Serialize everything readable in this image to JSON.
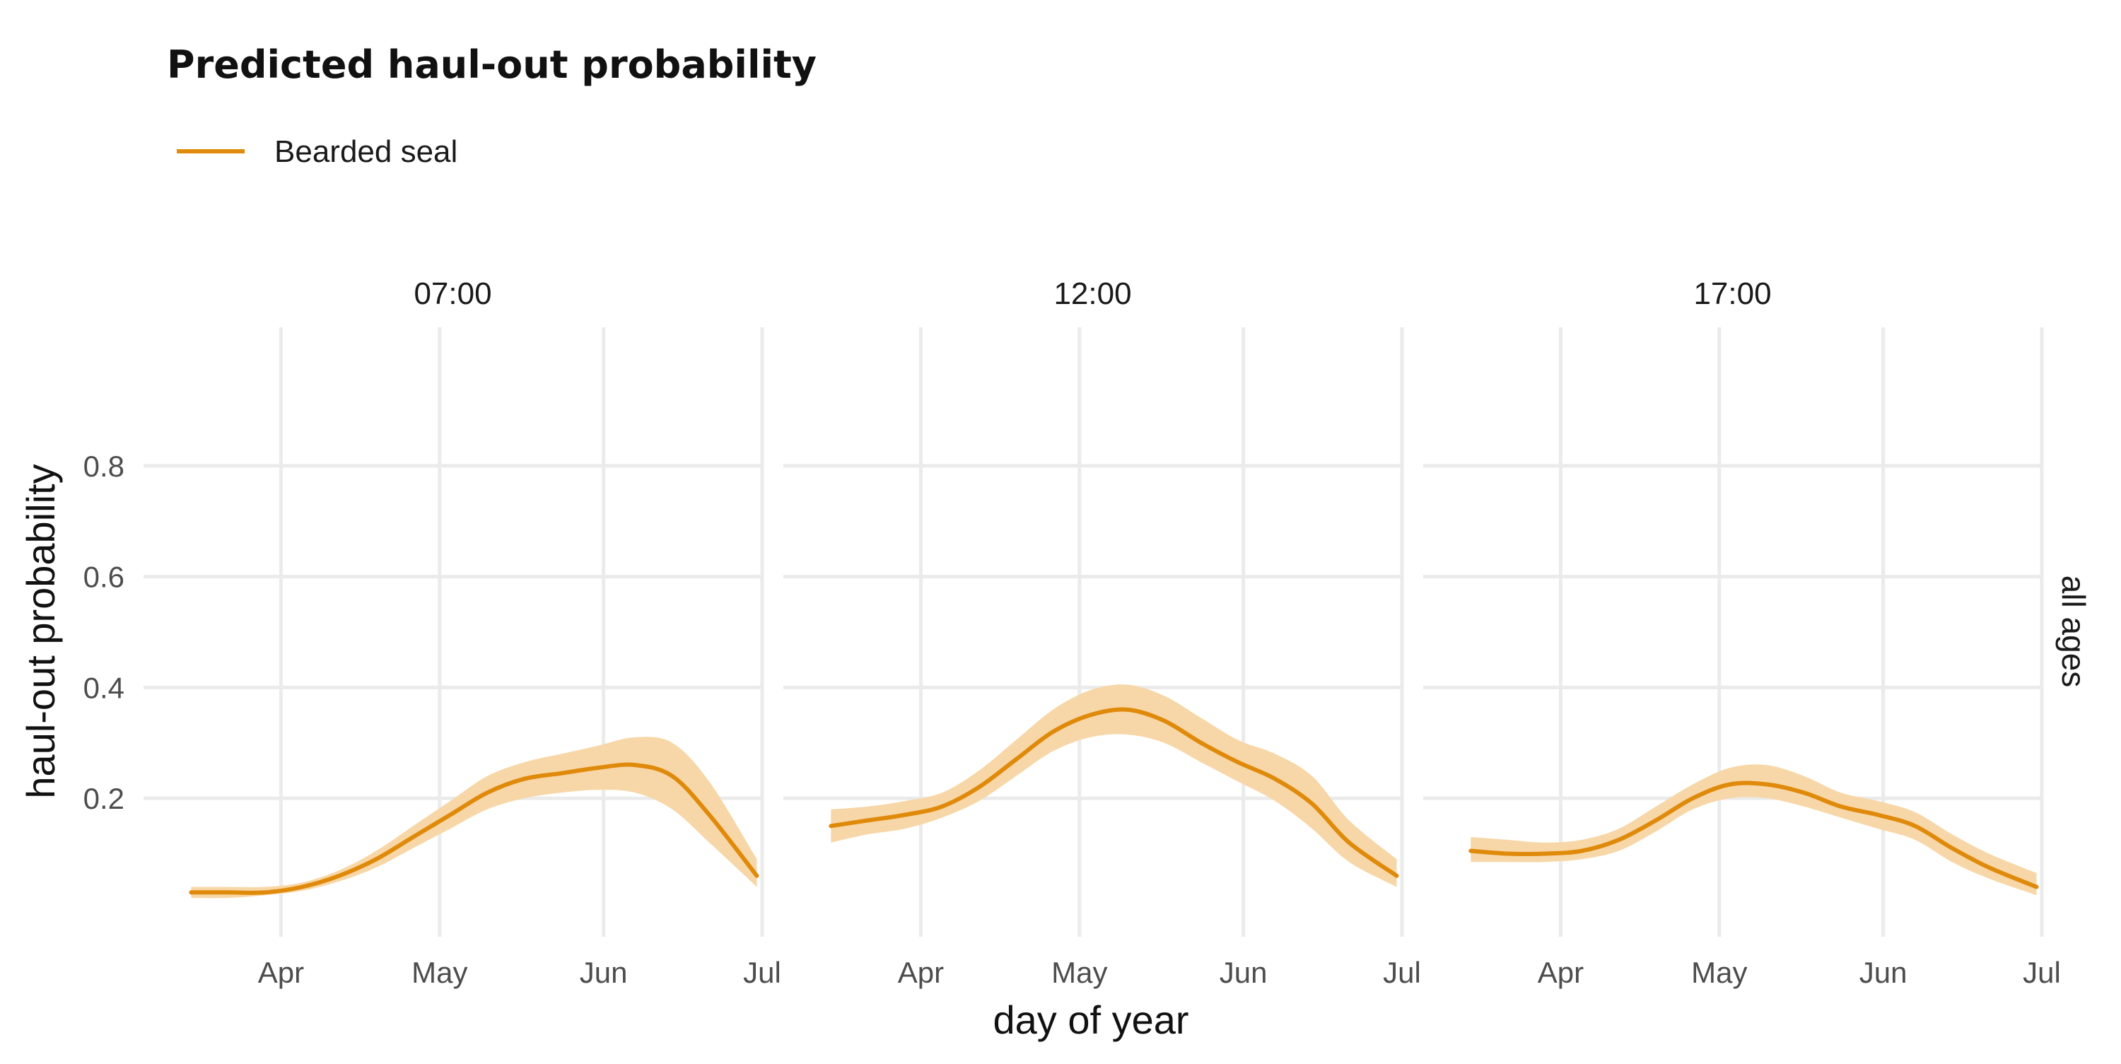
{
  "chart_data": {
    "type": "line",
    "title": "Predicted haul-out probability",
    "xlabel": "day of year",
    "ylabel": "haul-out probability",
    "row_facet_label": "all ages",
    "ylim": [
      -0.05,
      1.05
    ],
    "y_ticks": [
      0.2,
      0.4,
      0.6,
      0.8
    ],
    "y_tick_labels": [
      "0.2",
      "0.4",
      "0.6",
      "0.8"
    ],
    "xlim": [
      "2000-03-06",
      "2000-07-01"
    ],
    "x_ticks": [
      "2000-04-01",
      "2000-05-01",
      "2000-06-01",
      "2000-07-01"
    ],
    "x_tick_labels": [
      "Apr",
      "May",
      "Jun",
      "Jul"
    ],
    "grid": true,
    "legend": {
      "position": "top-left",
      "entries": [
        "Bearded seal"
      ]
    },
    "colors": {
      "line": "#e08a0b",
      "band": "#f7d7a7"
    },
    "panels": [
      {
        "label": "07:00",
        "series": [
          {
            "name": "Bearded seal",
            "x": [
              "2000-03-15",
              "2000-03-22",
              "2000-03-29",
              "2000-04-05",
              "2000-04-12",
              "2000-04-19",
              "2000-04-26",
              "2000-05-03",
              "2000-05-10",
              "2000-05-17",
              "2000-05-24",
              "2000-05-31",
              "2000-06-07",
              "2000-06-14",
              "2000-06-21",
              "2000-06-30"
            ],
            "y": [
              0.03,
              0.03,
              0.03,
              0.04,
              0.06,
              0.09,
              0.13,
              0.17,
              0.21,
              0.235,
              0.245,
              0.255,
              0.26,
              0.24,
              0.17,
              0.06
            ],
            "lower": [
              0.02,
              0.02,
              0.025,
              0.033,
              0.05,
              0.075,
              0.11,
              0.145,
              0.18,
              0.2,
              0.21,
              0.215,
              0.21,
              0.18,
              0.12,
              0.04
            ],
            "upper": [
              0.04,
              0.04,
              0.04,
              0.048,
              0.07,
              0.105,
              0.15,
              0.195,
              0.24,
              0.265,
              0.28,
              0.295,
              0.31,
              0.3,
              0.23,
              0.09
            ]
          }
        ]
      },
      {
        "label": "12:00",
        "series": [
          {
            "name": "Bearded seal",
            "x": [
              "2000-03-15",
              "2000-03-22",
              "2000-03-29",
              "2000-04-05",
              "2000-04-12",
              "2000-04-19",
              "2000-04-26",
              "2000-05-03",
              "2000-05-10",
              "2000-05-17",
              "2000-05-24",
              "2000-05-31",
              "2000-06-07",
              "2000-06-14",
              "2000-06-21",
              "2000-06-30"
            ],
            "y": [
              0.15,
              0.16,
              0.17,
              0.185,
              0.22,
              0.27,
              0.32,
              0.35,
              0.36,
              0.34,
              0.3,
              0.265,
              0.235,
              0.19,
              0.12,
              0.06
            ],
            "lower": [
              0.12,
              0.135,
              0.145,
              0.165,
              0.195,
              0.24,
              0.285,
              0.31,
              0.315,
              0.3,
              0.265,
              0.23,
              0.195,
              0.145,
              0.085,
              0.04
            ],
            "upper": [
              0.18,
              0.185,
              0.195,
              0.21,
              0.25,
              0.305,
              0.36,
              0.395,
              0.405,
              0.385,
              0.345,
              0.305,
              0.28,
              0.24,
              0.16,
              0.09
            ]
          }
        ]
      },
      {
        "label": "17:00",
        "series": [
          {
            "name": "Bearded seal",
            "x": [
              "2000-03-15",
              "2000-03-22",
              "2000-03-29",
              "2000-04-05",
              "2000-04-12",
              "2000-04-19",
              "2000-04-26",
              "2000-05-03",
              "2000-05-10",
              "2000-05-17",
              "2000-05-24",
              "2000-05-31",
              "2000-06-07",
              "2000-06-14",
              "2000-06-21",
              "2000-06-30"
            ],
            "y": [
              0.105,
              0.1,
              0.1,
              0.105,
              0.125,
              0.16,
              0.2,
              0.225,
              0.225,
              0.21,
              0.185,
              0.17,
              0.15,
              0.11,
              0.075,
              0.04
            ],
            "lower": [
              0.085,
              0.085,
              0.085,
              0.09,
              0.105,
              0.14,
              0.18,
              0.2,
              0.2,
              0.185,
              0.165,
              0.145,
              0.125,
              0.085,
              0.055,
              0.025
            ],
            "upper": [
              0.13,
              0.125,
              0.12,
              0.125,
              0.145,
              0.185,
              0.225,
              0.255,
              0.26,
              0.24,
              0.21,
              0.195,
              0.175,
              0.135,
              0.1,
              0.065
            ]
          }
        ]
      }
    ]
  }
}
